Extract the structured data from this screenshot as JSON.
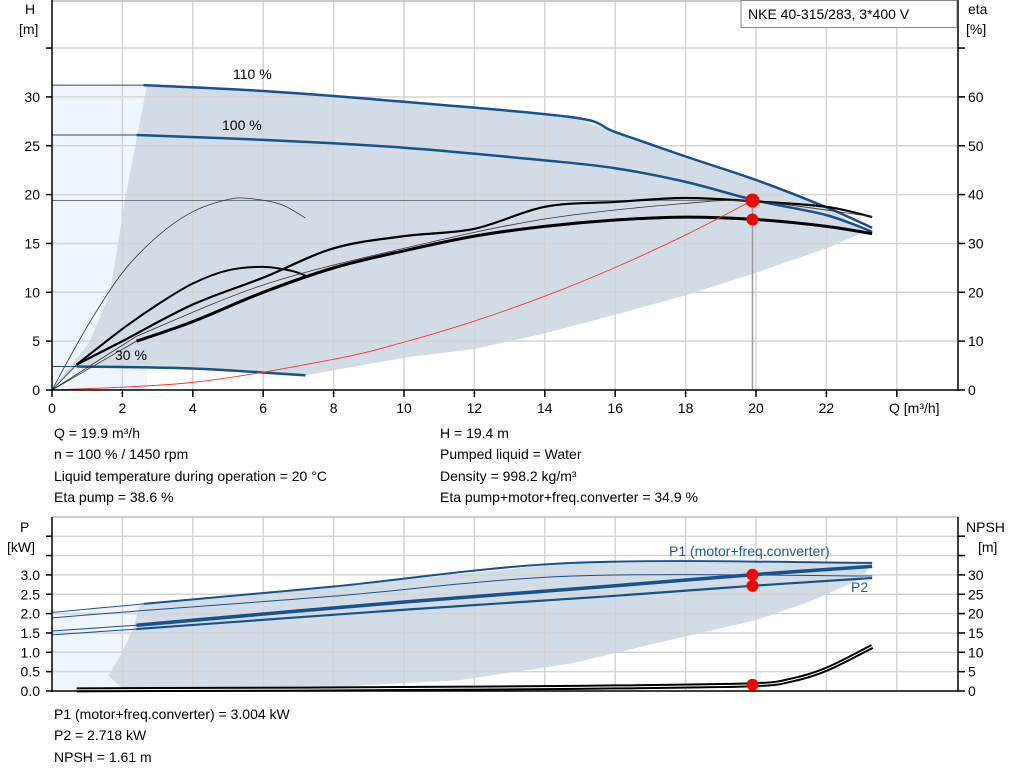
{
  "title_box": "NKE 40-315/283, 3*400 V",
  "colors": {
    "curve_blue": "#17528f",
    "region_dark": "#d1dce6",
    "region_light": "#eef5fc",
    "marker": "#ff0000",
    "system_curve": "#ff3030",
    "label_blue": "#1f5a96"
  },
  "info_top": {
    "left": [
      "Q = 19.9 m³/h",
      "n = 100 % / 1450 rpm",
      "Liquid temperature during operation = 20 °C",
      "Eta pump = 38.6 %"
    ],
    "right": [
      "H = 19.4 m",
      "Pumped liquid = Water",
      "Density = 998.2 kg/m³",
      "Eta pump+motor+freq.converter = 34.9 %"
    ]
  },
  "info_bottom": [
    "P1 (motor+freq.converter) = 3.004 kW",
    "P2 = 2.718 kW",
    "NPSH = 1.61 m"
  ],
  "chart_data": [
    {
      "type": "line",
      "ylabel_left": [
        "H",
        "[m]"
      ],
      "ylabel_right": [
        "eta",
        "[%]"
      ],
      "xlabel": "Q [m³/h]",
      "xticks": [
        "0",
        "2",
        "4",
        "6",
        "8",
        "10",
        "12",
        "14",
        "16",
        "18",
        "20",
        "22"
      ],
      "yticks_left": [
        "0",
        "5",
        "10",
        "15",
        "20",
        "25",
        "30"
      ],
      "yticks_right": [
        "0",
        "10",
        "20",
        "30",
        "40",
        "50",
        "60"
      ],
      "xlim": [
        0,
        25.7
      ],
      "ylim_left": [
        0,
        40
      ],
      "ylim_right": [
        0,
        80
      ],
      "grid": true,
      "curve_labels": [
        "110 %",
        "100 %",
        "30 %"
      ],
      "series": [
        {
          "kind": "H",
          "speed": "110 %",
          "points": [
            [
              0,
              31.2
            ],
            [
              2.6,
              31.2
            ],
            [
              6,
              30.6
            ],
            [
              10,
              29.5
            ],
            [
              14.8,
              27.9
            ],
            [
              16,
              26.4
            ],
            [
              18,
              23.9
            ],
            [
              20,
              21.5
            ],
            [
              22,
              18.7
            ],
            [
              23.3,
              16.6
            ]
          ]
        },
        {
          "kind": "H",
          "speed": "100 %",
          "points": [
            [
              0,
              26.1
            ],
            [
              2.4,
              26.1
            ],
            [
              6,
              25.6
            ],
            [
              10,
              24.8
            ],
            [
              14,
              23.5
            ],
            [
              16,
              22.7
            ],
            [
              18,
              21.3
            ],
            [
              20,
              19.4
            ],
            [
              22,
              17.9
            ],
            [
              23.3,
              16.2
            ]
          ]
        },
        {
          "kind": "H",
          "speed": "30 %",
          "points": [
            [
              0,
              2.4
            ],
            [
              0.7,
              2.4
            ],
            [
              4,
              2.2
            ],
            [
              7.2,
              1.5
            ]
          ]
        },
        {
          "kind": "eta_pump",
          "points": [
            [
              0.7,
              5.2
            ],
            [
              2,
              10
            ],
            [
              4,
              17.5
            ],
            [
              6,
              23
            ],
            [
              8,
              29
            ],
            [
              10,
              31.5
            ],
            [
              12,
              33
            ],
            [
              14,
              37.5
            ],
            [
              16,
              38.5
            ],
            [
              18,
              39.3
            ],
            [
              20,
              38.6
            ],
            [
              22,
              37.5
            ],
            [
              23.3,
              35.4
            ]
          ]
        },
        {
          "kind": "eta_total",
          "points": [
            [
              2.4,
              10
            ],
            [
              4,
              14
            ],
            [
              6,
              20
            ],
            [
              8,
              25
            ],
            [
              10,
              28.5
            ],
            [
              12,
              31.5
            ],
            [
              14,
              33.5
            ],
            [
              16,
              34.8
            ],
            [
              18,
              35.4
            ],
            [
              20,
              34.9
            ],
            [
              22,
              33.5
            ],
            [
              23.3,
              32
            ]
          ]
        },
        {
          "kind": "eta_low_speed",
          "points": [
            [
              0,
              0
            ],
            [
              1,
              13
            ],
            [
              2,
              24
            ],
            [
              3,
              31.5
            ],
            [
              4,
              36.5
            ],
            [
              5,
              39
            ],
            [
              5.6,
              39.2
            ],
            [
              6.5,
              38
            ],
            [
              7.2,
              35.2
            ]
          ]
        },
        {
          "kind": "eta_low_speed_total",
          "points": [
            [
              0.7,
              5.2
            ],
            [
              2,
              12.5
            ],
            [
              3,
              17.5
            ],
            [
              4,
              21.8
            ],
            [
              5,
              24.5
            ],
            [
              6,
              25.2
            ],
            [
              6.8,
              24.4
            ],
            [
              7.2,
              23.4
            ]
          ]
        },
        {
          "kind": "system_curve",
          "points": [
            [
              0,
              0
            ],
            [
              4,
              0.78
            ],
            [
              8,
              3.14
            ],
            [
              10,
              4.9
            ],
            [
              12,
              7.06
            ],
            [
              14,
              9.6
            ],
            [
              16,
              12.54
            ],
            [
              18,
              15.87
            ],
            [
              19.9,
              19.4
            ]
          ]
        }
      ],
      "duty_point": {
        "Q": 19.9,
        "H": 19.4,
        "eta_pump": 38.6,
        "eta_total": 34.9
      }
    },
    {
      "type": "line",
      "ylabel_left": [
        "P",
        "[kW]"
      ],
      "ylabel_right": [
        "NPSH",
        "[m]"
      ],
      "yticks_left": [
        "0.0",
        "0.5",
        "1.0",
        "1.5",
        "2.0",
        "2.5",
        "3.0"
      ],
      "yticks_right": [
        "0",
        "5",
        "10",
        "15",
        "20",
        "25",
        "30"
      ],
      "ylim_left": [
        0,
        4.5
      ],
      "ylim_right": [
        0,
        45
      ],
      "grid": true,
      "legend_labels": [
        "P1 (motor+freq.converter)",
        "P2"
      ],
      "series": [
        {
          "kind": "P1_110",
          "points": [
            [
              0,
              2.03
            ],
            [
              2.6,
              2.25
            ],
            [
              8,
              2.7
            ],
            [
              14.8,
              3.31
            ],
            [
              23.3,
              3.31
            ]
          ]
        },
        {
          "kind": "P2_110",
          "points": [
            [
              0,
              1.89
            ],
            [
              2.6,
              2.08
            ],
            [
              8,
              2.45
            ],
            [
              14.8,
              2.97
            ],
            [
              23.3,
              2.97
            ]
          ]
        },
        {
          "kind": "P1",
          "points": [
            [
              0,
              1.55
            ],
            [
              2.4,
              1.7
            ],
            [
              10,
              2.3
            ],
            [
              16,
              2.72
            ],
            [
              19.9,
              3.004
            ],
            [
              23.3,
              3.22
            ]
          ]
        },
        {
          "kind": "P2",
          "points": [
            [
              0,
              1.45
            ],
            [
              2.4,
              1.6
            ],
            [
              10,
              2.1
            ],
            [
              16,
              2.46
            ],
            [
              19.9,
              2.718
            ],
            [
              23.3,
              2.92
            ]
          ]
        },
        {
          "kind": "NPSH",
          "points": [
            [
              0.7,
              0.3
            ],
            [
              7.2,
              0.5
            ],
            [
              12,
              0.75
            ],
            [
              16,
              1.05
            ],
            [
              19.9,
              1.61
            ],
            [
              21,
              2.8
            ],
            [
              22,
              5.6
            ],
            [
              23.3,
              11.5
            ]
          ]
        }
      ],
      "duty_point": {
        "Q": 19.9,
        "P1": 3.004,
        "P2": 2.718,
        "NPSH": 1.61
      }
    }
  ]
}
